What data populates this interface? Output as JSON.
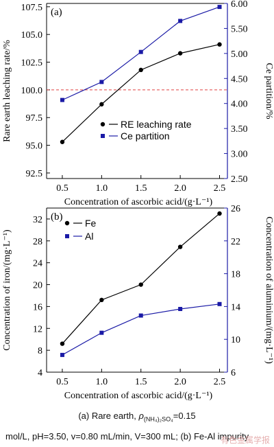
{
  "chart_data": [
    {
      "type": "line",
      "panel_label": "(a)",
      "x": [
        0.5,
        1.0,
        1.5,
        2.0,
        2.5
      ],
      "xlabel": "Concentration of ascorbic acid/(g·L⁻¹)",
      "xticks": [
        "0.5",
        "1.0",
        "1.5",
        "2.0",
        "2.5"
      ],
      "xlim": [
        0.3,
        2.6
      ],
      "ylabel_left": "Rare earth leaching rate/%",
      "ylim_left": [
        92.0,
        107.8
      ],
      "yticks_left": [
        "92.5",
        "95.0",
        "97.5",
        "100.0",
        "102.5",
        "105.0",
        "107.5"
      ],
      "ylabel_right": "Ce partition/%",
      "ylim_right": [
        2.5,
        6.0
      ],
      "yticks_right": [
        "2.50",
        "3.00",
        "3.50",
        "4.00",
        "4.50",
        "5.00",
        "5.50",
        "6.00"
      ],
      "reference_line": {
        "axis": "left",
        "y": 100.0,
        "color": "#e04040",
        "style": "dashed"
      },
      "legend_position": "center-right",
      "series": [
        {
          "name": "RE leaching rate",
          "axis": "left",
          "color": "#000000",
          "marker": "circle",
          "values": [
            95.3,
            98.7,
            101.8,
            103.3,
            104.1
          ]
        },
        {
          "name": "Ce partition",
          "axis": "right",
          "color": "#1a1aa6",
          "marker": "square",
          "values": [
            4.07,
            4.43,
            5.03,
            5.65,
            5.93
          ]
        }
      ]
    },
    {
      "type": "line",
      "panel_label": "(b)",
      "x": [
        0.5,
        1.0,
        1.5,
        2.0,
        2.5
      ],
      "xlabel": "Concentration of ascorbic acid/(g·L⁻¹)",
      "xticks": [
        "0.5",
        "1.0",
        "1.5",
        "2.0",
        "2.5"
      ],
      "xlim": [
        0.3,
        2.6
      ],
      "ylabel_left": "Concentration of iron/(mg·L⁻¹)",
      "ylim_left": [
        4,
        34
      ],
      "yticks_left": [
        "4",
        "8",
        "12",
        "16",
        "20",
        "24",
        "28",
        "32"
      ],
      "ylabel_right": "Concentration of aluminium/(mg·L⁻¹)",
      "ylim_right": [
        6,
        26
      ],
      "yticks_right": [
        "6",
        "10",
        "14",
        "18",
        "22",
        "26"
      ],
      "legend_position": "top-left",
      "series": [
        {
          "name": "Fe",
          "axis": "left",
          "color": "#000000",
          "marker": "circle",
          "values": [
            9.2,
            17.2,
            20.0,
            26.9,
            33.0
          ]
        },
        {
          "name": "Al",
          "axis": "right",
          "color": "#1a1aa6",
          "marker": "square",
          "values": [
            8.1,
            10.8,
            12.9,
            13.7,
            14.3
          ]
        }
      ]
    }
  ],
  "caption": {
    "line1_prefix": "(a) Rare earth, ",
    "rho_symbol": "ρ",
    "rho_subscript": "(NH₄)₂SO₄",
    "line1_suffix": "=0.15",
    "line2": "mol/L, pH=3.50, v=0.80 mL/min, V=300 mL; (b) Fe-Al impurity"
  },
  "watermark": "有色金属学报"
}
